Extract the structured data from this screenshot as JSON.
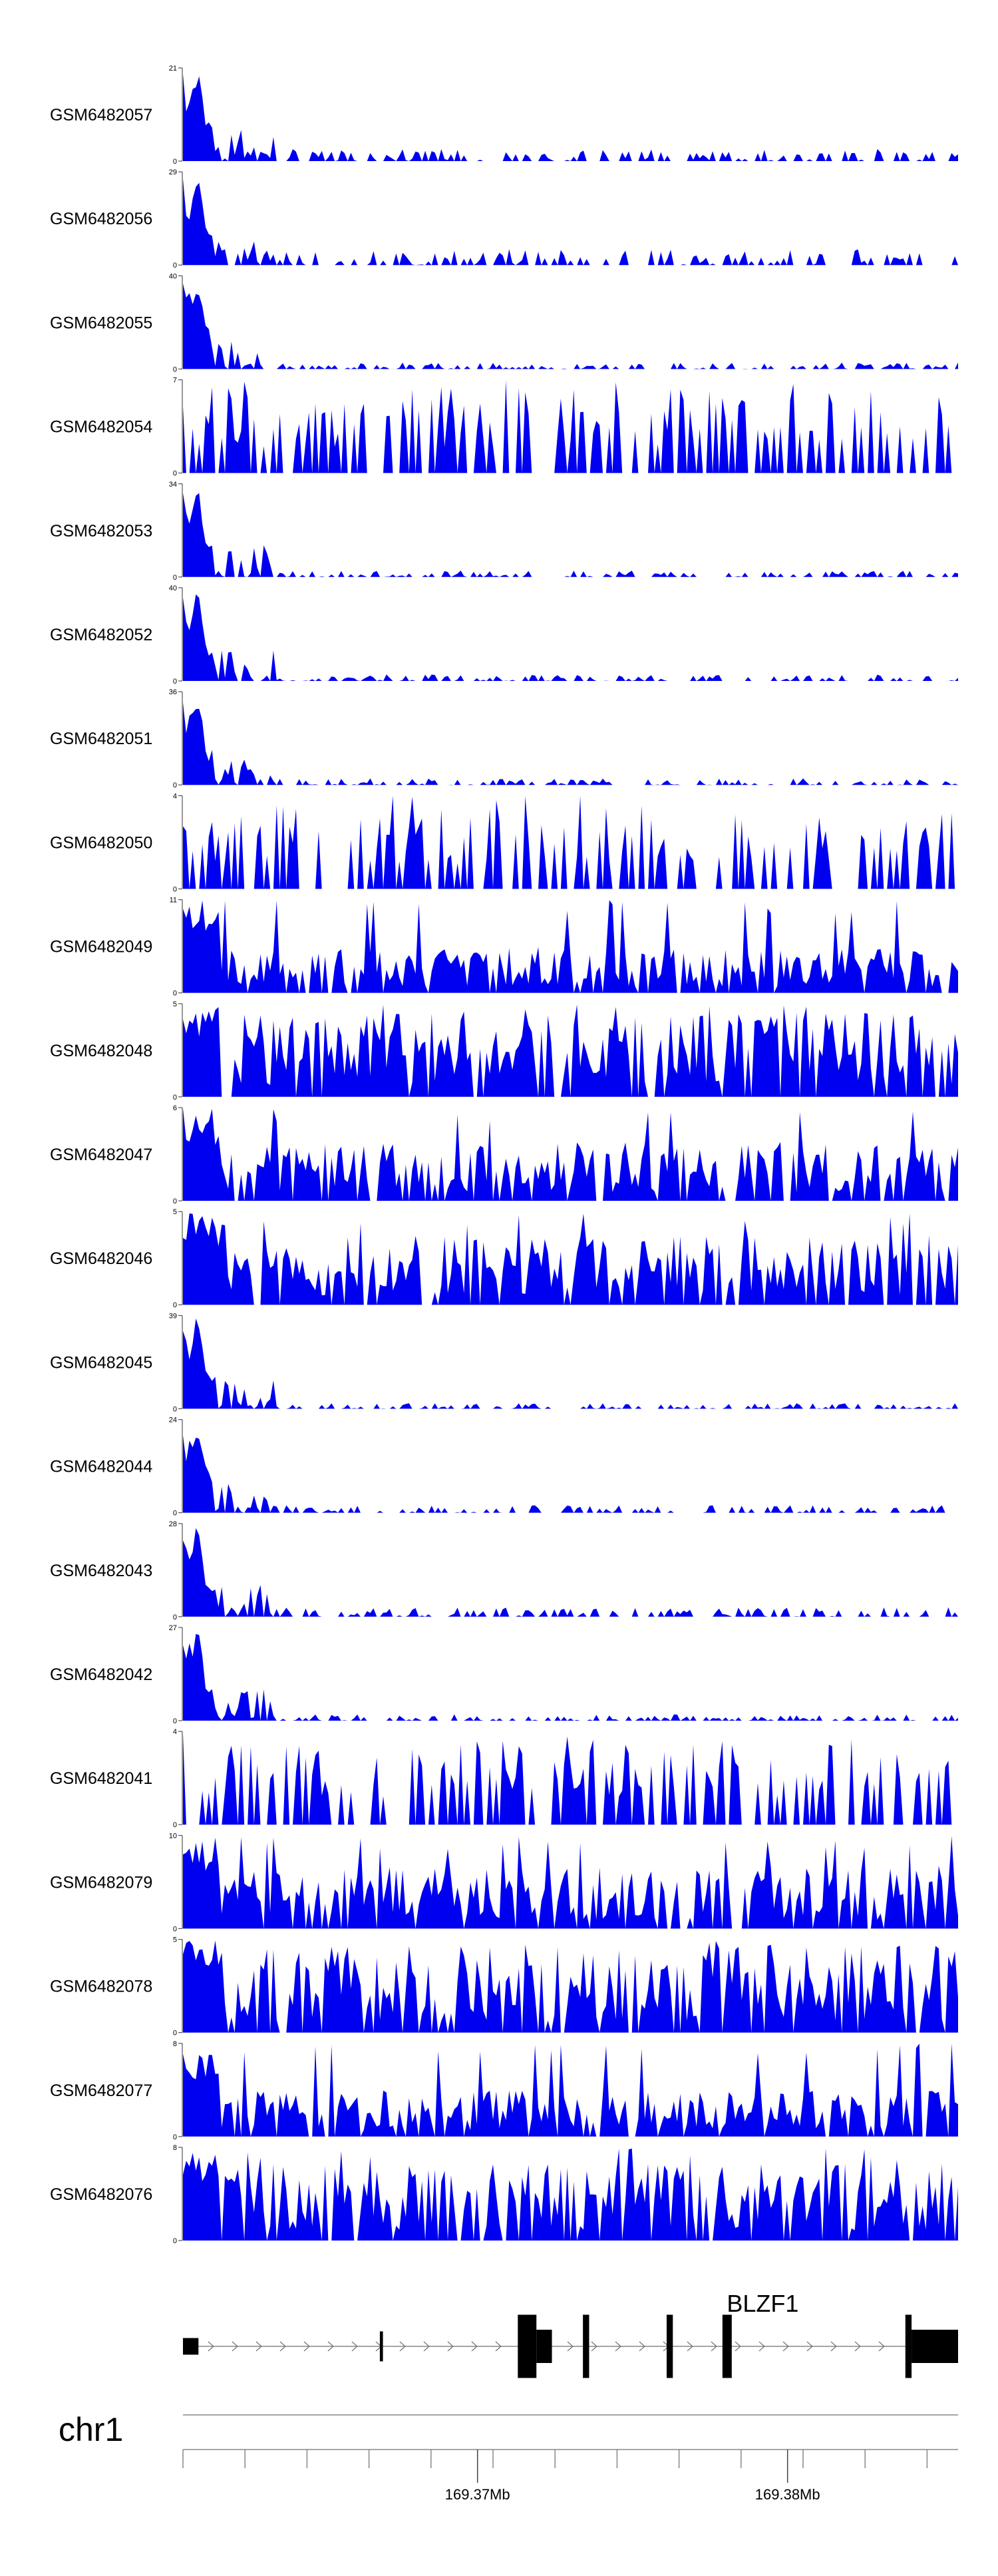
{
  "chart_data": {
    "type": "area",
    "chromosome": "chr1",
    "x_range_mb": [
      169.3605,
      169.3855
    ],
    "track_color": "#0000f0",
    "tracks": [
      {
        "name": "GSM6482057",
        "ymax": 21,
        "ymin": 0,
        "profile": "peak",
        "seed": 11,
        "level": 0.13
      },
      {
        "name": "GSM6482056",
        "ymax": 29,
        "ymin": 0,
        "profile": "peak",
        "seed": 12,
        "level": 0.17
      },
      {
        "name": "GSM6482055",
        "ymax": 40,
        "ymin": 0,
        "profile": "peak",
        "seed": 13,
        "level": 0.07
      },
      {
        "name": "GSM6482054",
        "ymax": 7,
        "ymin": 0,
        "profile": "sparse",
        "seed": 14,
        "level": 0.55
      },
      {
        "name": "GSM6482053",
        "ymax": 34,
        "ymin": 0,
        "profile": "peak",
        "seed": 15,
        "level": 0.07
      },
      {
        "name": "GSM6482052",
        "ymax": 40,
        "ymin": 0,
        "profile": "peak",
        "seed": 16,
        "level": 0.07
      },
      {
        "name": "GSM6482051",
        "ymax": 36,
        "ymin": 0,
        "profile": "peak",
        "seed": 17,
        "level": 0.07
      },
      {
        "name": "GSM6482050",
        "ymax": 4,
        "ymin": 0,
        "profile": "sparse",
        "seed": 18,
        "level": 0.55
      },
      {
        "name": "GSM6482049",
        "ymax": 11,
        "ymin": 0,
        "profile": "noisy",
        "seed": 19,
        "level": 0.33
      },
      {
        "name": "GSM6482048",
        "ymax": 5,
        "ymin": 0,
        "profile": "noisy",
        "seed": 20,
        "level": 0.6
      },
      {
        "name": "GSM6482047",
        "ymax": 6,
        "ymin": 0,
        "profile": "noisy",
        "seed": 21,
        "level": 0.42
      },
      {
        "name": "GSM6482046",
        "ymax": 5,
        "ymin": 0,
        "profile": "noisy",
        "seed": 22,
        "level": 0.5
      },
      {
        "name": "GSM6482045",
        "ymax": 39,
        "ymin": 0,
        "profile": "peak",
        "seed": 23,
        "level": 0.06
      },
      {
        "name": "GSM6482044",
        "ymax": 24,
        "ymin": 0,
        "profile": "peak",
        "seed": 24,
        "level": 0.08
      },
      {
        "name": "GSM6482043",
        "ymax": 28,
        "ymin": 0,
        "profile": "peak",
        "seed": 25,
        "level": 0.1
      },
      {
        "name": "GSM6482042",
        "ymax": 27,
        "ymin": 0,
        "profile": "peak",
        "seed": 26,
        "level": 0.07
      },
      {
        "name": "GSM6482041",
        "ymax": 4,
        "ymin": 0,
        "profile": "sparse",
        "seed": 27,
        "level": 0.6
      },
      {
        "name": "GSM6482079",
        "ymax": 10,
        "ymin": 0,
        "profile": "noisy",
        "seed": 28,
        "level": 0.45
      },
      {
        "name": "GSM6482078",
        "ymax": 5,
        "ymin": 0,
        "profile": "noisy",
        "seed": 29,
        "level": 0.62
      },
      {
        "name": "GSM6482077",
        "ymax": 8,
        "ymin": 0,
        "profile": "noisy",
        "seed": 30,
        "level": 0.33
      },
      {
        "name": "GSM6482076",
        "ymax": 8,
        "ymin": 0,
        "profile": "noisy",
        "seed": 31,
        "level": 0.55
      }
    ],
    "gene": {
      "name": "BLZF1",
      "strand": "+",
      "exons_mb": [
        [
          169.3605,
          169.361
        ],
        [
          169.36685,
          169.36695
        ],
        [
          169.3713,
          169.3719
        ],
        [
          169.3719,
          169.3724
        ],
        [
          169.3734,
          169.3736
        ],
        [
          169.3761,
          169.3763
        ],
        [
          169.3779,
          169.3782
        ],
        [
          169.3838,
          169.384
        ],
        [
          169.384,
          169.3855
        ]
      ]
    },
    "axis": {
      "ticks": [
        {
          "mb": 169.37,
          "label": "169.37Mb"
        },
        {
          "mb": 169.38,
          "label": "169.38Mb"
        }
      ]
    }
  }
}
